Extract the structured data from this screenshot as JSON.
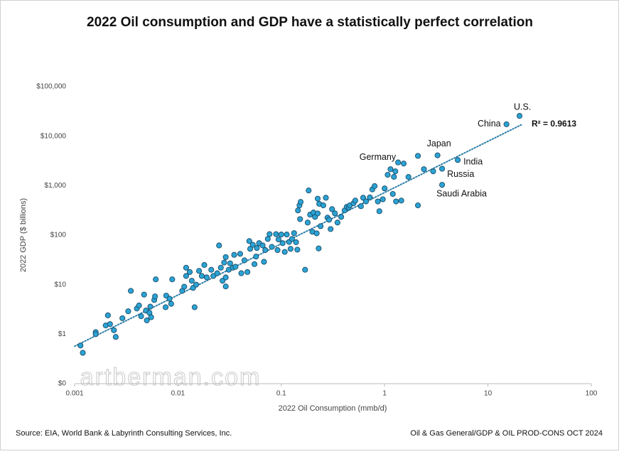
{
  "chart_data": {
    "type": "scatter",
    "title": "2022 Oil consumption and GDP have a statistically perfect correlation",
    "xlabel": "2022 Oil Consumption (mmb/d)",
    "ylabel": "2022 GDP ($ billions)",
    "source": "Source: EIA, World Bank & Labyrinth Consulting Services, Inc.",
    "footnote": "Oil & Gas General/GDP & OIL PROD-CONS OCT 2024",
    "watermark": "artberman.com",
    "xscale": "log",
    "yscale": "log",
    "xlim": [
      0.001,
      100
    ],
    "ylim": [
      0.1,
      100000
    ],
    "xticks": [
      0.001,
      0.01,
      0.1,
      1,
      10,
      100
    ],
    "yticks": [
      {
        "value": 0.1,
        "label": "$0"
      },
      {
        "value": 1,
        "label": "$1"
      },
      {
        "value": 10,
        "label": "$10"
      },
      {
        "value": 100,
        "label": "$100"
      },
      {
        "value": 1000,
        "label": "$1,000"
      },
      {
        "value": 10000,
        "label": "$10,000"
      },
      {
        "value": 100000,
        "label": "$100,000"
      }
    ],
    "color": "#2ba3d4",
    "edgecolor": "#1b4a66",
    "x": [
      0.00114,
      0.0012,
      0.0016,
      0.0016,
      0.0021,
      0.002,
      0.0022,
      0.0024,
      0.0025,
      0.0029,
      0.0033,
      0.0035,
      0.004,
      0.0042,
      0.0044,
      0.0047,
      0.0049,
      0.005,
      0.0053,
      0.0054,
      0.0055,
      0.0059,
      0.0061,
      0.006,
      0.0076,
      0.0077,
      0.0083,
      0.0086,
      0.0088,
      0.011,
      0.0115,
      0.012,
      0.012,
      0.013,
      0.0136,
      0.014,
      0.0145,
      0.015,
      0.016,
      0.017,
      0.018,
      0.019,
      0.021,
      0.022,
      0.024,
      0.025,
      0.026,
      0.027,
      0.028,
      0.029,
      0.029,
      0.029,
      0.031,
      0.032,
      0.034,
      0.035,
      0.036,
      0.04,
      0.041,
      0.044,
      0.047,
      0.049,
      0.05,
      0.053,
      0.055,
      0.057,
      0.058,
      0.061,
      0.066,
      0.068,
      0.07,
      0.074,
      0.077,
      0.081,
      0.089,
      0.092,
      0.094,
      0.1,
      0.103,
      0.108,
      0.113,
      0.119,
      0.123,
      0.127,
      0.133,
      0.139,
      0.143,
      0.145,
      0.15,
      0.154,
      0.152,
      0.17,
      0.18,
      0.184,
      0.19,
      0.2,
      0.205,
      0.212,
      0.22,
      0.225,
      0.225,
      0.23,
      0.233,
      0.24,
      0.255,
      0.27,
      0.28,
      0.29,
      0.3,
      0.31,
      0.33,
      0.35,
      0.38,
      0.41,
      0.43,
      0.45,
      0.46,
      0.5,
      0.52,
      0.59,
      0.62,
      0.66,
      0.72,
      0.76,
      0.8,
      0.86,
      0.89,
      0.96,
      1.0,
      1.07,
      1.14,
      1.2,
      1.23,
      1.29,
      1.27,
      1.35,
      1.45,
      1.53,
      1.7,
      2.1,
      2.1,
      2.4,
      2.95,
      3.25,
      3.6,
      3.6,
      5.1,
      15.1,
      20.2
    ],
    "values": [
      0.59,
      0.42,
      1.1,
      1.0,
      2.4,
      1.5,
      1.6,
      1.2,
      0.88,
      2.1,
      2.9,
      7.5,
      3.3,
      3.8,
      2.3,
      6.3,
      3.0,
      1.9,
      2.7,
      3.6,
      2.2,
      4.9,
      12.8,
      5.8,
      3.5,
      6.0,
      5.2,
      4.1,
      12.8,
      7.5,
      9.1,
      15,
      22,
      18,
      12,
      8.6,
      3.5,
      10,
      19,
      15,
      25,
      14,
      20,
      15,
      17,
      62,
      22,
      12,
      28,
      9.2,
      14,
      36,
      20,
      27,
      22,
      40,
      23,
      42,
      17,
      31,
      18,
      76,
      53,
      64,
      26,
      37,
      55,
      69,
      62,
      29,
      50,
      84,
      105,
      58,
      105,
      50,
      82,
      103,
      69,
      46,
      103,
      73,
      53,
      84,
      110,
      72,
      51,
      316,
      400,
      470,
      211,
      20,
      180,
      800,
      260,
      117,
      287,
      234,
      109,
      275,
      546,
      54,
      430,
      152,
      400,
      570,
      226,
      205,
      133,
      336,
      276,
      180,
      234,
      316,
      373,
      361,
      400,
      440,
      500,
      385,
      570,
      480,
      580,
      840,
      980,
      480,
      305,
      530,
      880,
      1660,
      2150,
      680,
      1510,
      480,
      1950,
      2950,
      500,
      2800,
      1500,
      400,
      4000,
      2150,
      1950,
      4100,
      2200,
      1040,
      3300,
      17400,
      25700
    ],
    "trendline": {
      "x": [
        0.001,
        21.5
      ],
      "y": [
        0.57,
        17400
      ],
      "color": "#2f7fa8"
    },
    "r_squared_label": "R² = 0.9613",
    "point_labels": [
      {
        "text": "U.S.",
        "x": 20.2,
        "y": 25700
      },
      {
        "text": "China",
        "x": 15.1,
        "y": 17400
      },
      {
        "text": "Japan",
        "x": 3.25,
        "y": 4100
      },
      {
        "text": "Germany",
        "x": 1.35,
        "y": 2950
      },
      {
        "text": "India",
        "x": 5.1,
        "y": 3300
      },
      {
        "text": "Russia",
        "x": 3.6,
        "y": 2200
      },
      {
        "text": "Saudi Arabia",
        "x": 3.6,
        "y": 1040
      }
    ]
  }
}
